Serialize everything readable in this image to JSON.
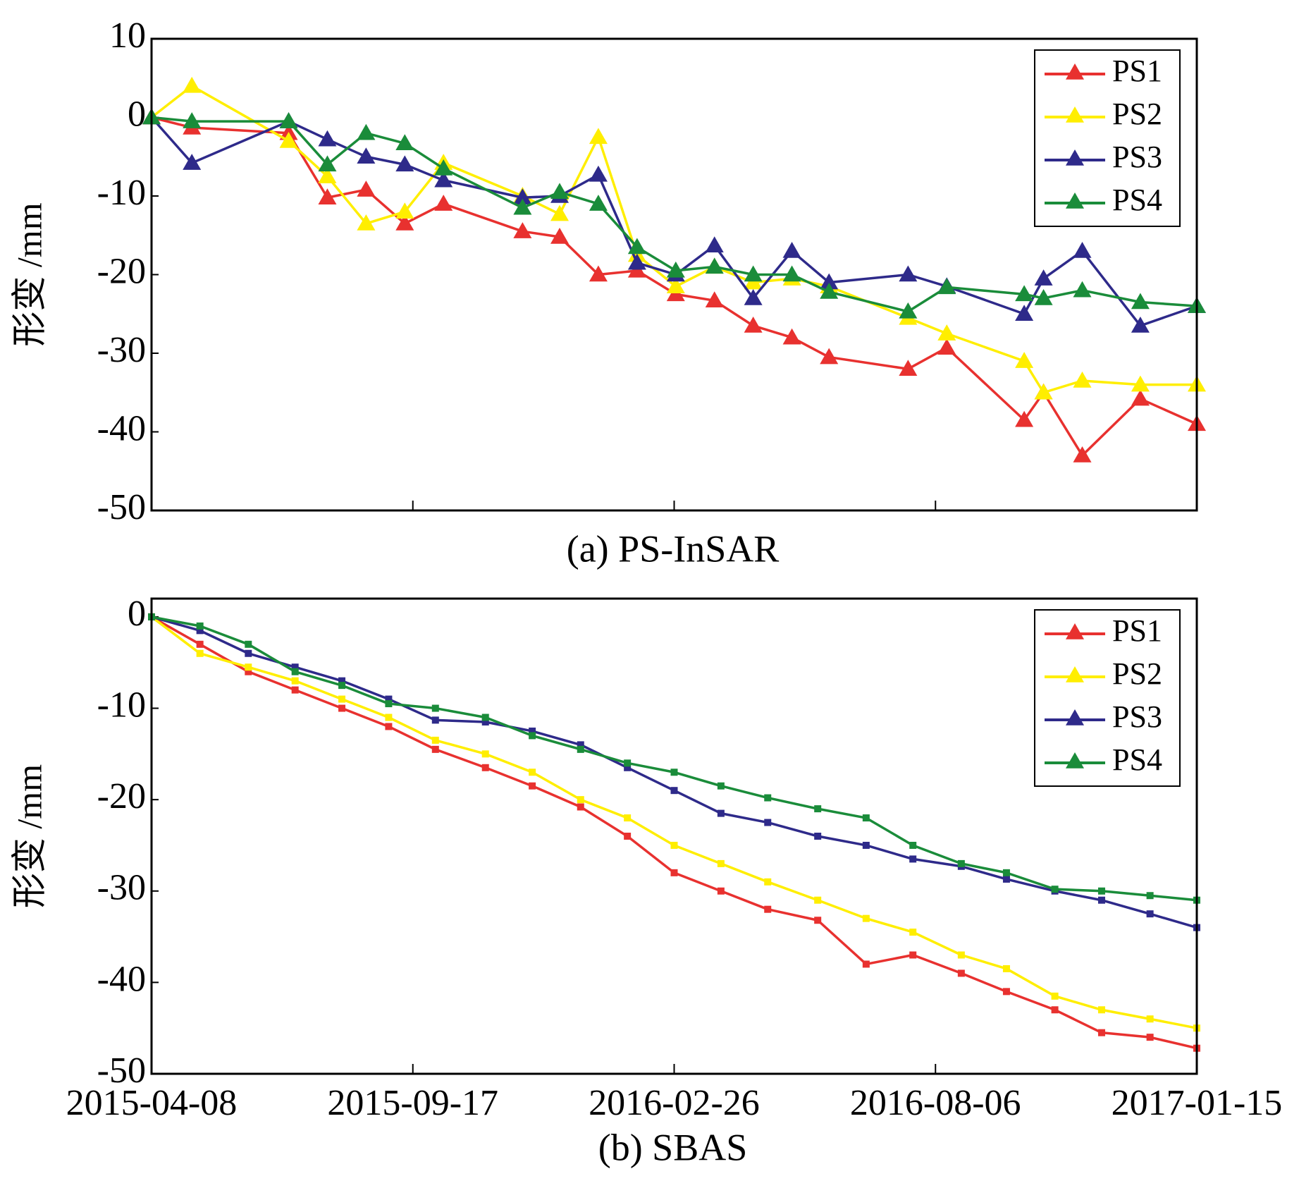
{
  "chart_data": [
    {
      "type": "line",
      "caption": "(a) PS-InSAR",
      "ylabel": "形变 /mm",
      "marker": "triangle",
      "xtick_labels": false,
      "x": [
        "2015-04-08",
        "2015-05-03",
        "2015-07-02",
        "2015-07-26",
        "2015-08-19",
        "2015-09-12",
        "2015-10-06",
        "2015-11-24",
        "2015-12-17",
        "2016-01-10",
        "2016-02-03",
        "2016-02-27",
        "2016-03-22",
        "2016-04-15",
        "2016-05-09",
        "2016-06-01",
        "2016-07-20",
        "2016-08-13",
        "2016-09-30",
        "2016-10-12",
        "2016-11-05",
        "2016-12-11",
        "2017-01-15"
      ],
      "xlim": [
        "2015-04-08",
        "2017-01-15"
      ],
      "xticks": [
        "2015-04-08",
        "2015-09-17",
        "2016-02-26",
        "2016-08-06",
        "2017-01-15"
      ],
      "ylim": [
        -50,
        10
      ],
      "yticks": [
        -50,
        -40,
        -30,
        -20,
        -10,
        0,
        10
      ],
      "legend": "upper right",
      "series": [
        {
          "name": "PS1",
          "color": "#e8312f",
          "values": [
            0,
            -1.3,
            -2,
            -10.2,
            -9.2,
            -13.5,
            -11,
            -14.5,
            -15.2,
            -20,
            -19.5,
            -22.5,
            -23.3,
            -26.5,
            -28,
            -30.5,
            -32,
            -29.3,
            -38.5,
            -35,
            -43,
            -35.8,
            -39
          ]
        },
        {
          "name": "PS2",
          "color": "#ffee00",
          "values": [
            0,
            4,
            -3,
            -7.5,
            -13.5,
            -12,
            -5.8,
            -10,
            -12.3,
            -2.5,
            -17.5,
            -21.5,
            -19,
            -21,
            -20.5,
            -21.5,
            -25.5,
            -27.5,
            -31,
            -35,
            -33.5,
            -34,
            -34
          ]
        },
        {
          "name": "PS3",
          "color": "#2e2a8a",
          "values": [
            0,
            -5.8,
            -0.5,
            -2.8,
            -5,
            -6,
            -8,
            -10.2,
            -10,
            -7.3,
            -18.5,
            -20,
            -16.3,
            -23,
            -17,
            -21,
            -20,
            -21.5,
            -25,
            -20.5,
            -17,
            -26.5,
            -24
          ]
        },
        {
          "name": "PS4",
          "color": "#1a8c3a",
          "values": [
            0,
            -0.5,
            -0.5,
            -6,
            -2,
            -3.3,
            -6.5,
            -11.5,
            -9.5,
            -11,
            -16.5,
            -19.5,
            -19,
            -20,
            -20,
            -22.2,
            -24.7,
            -21.6,
            -22.5,
            -23,
            -22,
            -23.5,
            -24
          ]
        }
      ]
    },
    {
      "type": "line",
      "caption": "(b) SBAS",
      "ylabel": "形变 /mm",
      "marker": "square",
      "xtick_labels": true,
      "x": [
        "2015-04-08",
        "2015-05-08",
        "2015-06-07",
        "2015-07-06",
        "2015-08-04",
        "2015-09-02",
        "2015-10-01",
        "2015-11-01",
        "2015-11-30",
        "2015-12-30",
        "2016-01-28",
        "2016-02-26",
        "2016-03-26",
        "2016-04-24",
        "2016-05-25",
        "2016-06-24",
        "2016-07-23",
        "2016-08-22",
        "2016-09-19",
        "2016-10-19",
        "2016-11-17",
        "2016-12-17",
        "2017-01-15"
      ],
      "xlim": [
        "2015-04-08",
        "2017-01-15"
      ],
      "xticks": [
        "2015-04-08",
        "2015-09-17",
        "2016-02-26",
        "2016-08-06",
        "2017-01-15"
      ],
      "ylim": [
        -50,
        2
      ],
      "yticks": [
        -50,
        -40,
        -30,
        -20,
        -10,
        0
      ],
      "legend": "upper right",
      "series": [
        {
          "name": "PS1",
          "color": "#e8312f",
          "values": [
            0,
            -3,
            -6,
            -8,
            -10,
            -12,
            -14.5,
            -16.5,
            -18.5,
            -20.8,
            -24,
            -28,
            -30,
            -32,
            -33.2,
            -38,
            -37,
            -39,
            -41,
            -43,
            -45.5,
            -46,
            -47.2
          ]
        },
        {
          "name": "PS2",
          "color": "#ffee00",
          "values": [
            0,
            -4,
            -5.5,
            -7,
            -9,
            -11,
            -13.5,
            -15,
            -17,
            -20,
            -22,
            -25,
            -27,
            -29,
            -31,
            -33,
            -34.5,
            -37,
            -38.5,
            -41.5,
            -43,
            -44,
            -45
          ]
        },
        {
          "name": "PS3",
          "color": "#2e2a8a",
          "values": [
            0,
            -1.5,
            -4,
            -5.5,
            -7,
            -9,
            -11.3,
            -11.5,
            -12.5,
            -14,
            -16.5,
            -19,
            -21.5,
            -22.5,
            -24,
            -25,
            -26.5,
            -27.3,
            -28.7,
            -30,
            -31,
            -32.5,
            -34
          ]
        },
        {
          "name": "PS4",
          "color": "#1a8c3a",
          "values": [
            0,
            -1,
            -3,
            -6,
            -7.5,
            -9.5,
            -10,
            -11,
            -13,
            -14.5,
            -16,
            -17,
            -18.5,
            -19.8,
            -21,
            -22,
            -25,
            -27,
            -28,
            -29.8,
            -30,
            -30.5,
            -31
          ]
        }
      ]
    }
  ]
}
